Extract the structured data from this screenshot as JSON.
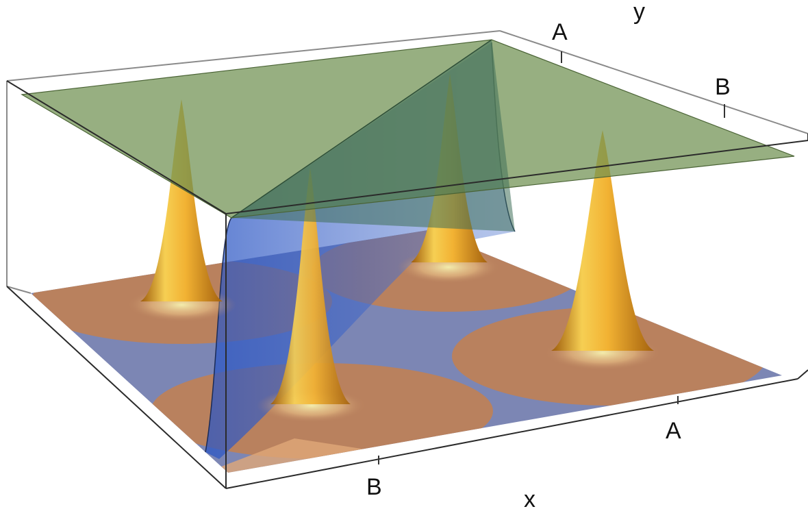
{
  "axes": {
    "x_title": "x",
    "y_title": "y",
    "x_ticks": [
      "B",
      "A"
    ],
    "y_ticks": [
      "A",
      "B"
    ]
  },
  "colors": {
    "peak": "#f2b233",
    "peak_dark": "#b06a10",
    "floor_orange": "#b9815e",
    "floor_blue": "#7c86b4",
    "step_blue": "#3c64c8",
    "top_green": "#6f9050"
  },
  "peaks": [
    {
      "name": "peak-back-left"
    },
    {
      "name": "peak-front-left"
    },
    {
      "name": "peak-back-right"
    },
    {
      "name": "peak-front-right"
    }
  ]
}
